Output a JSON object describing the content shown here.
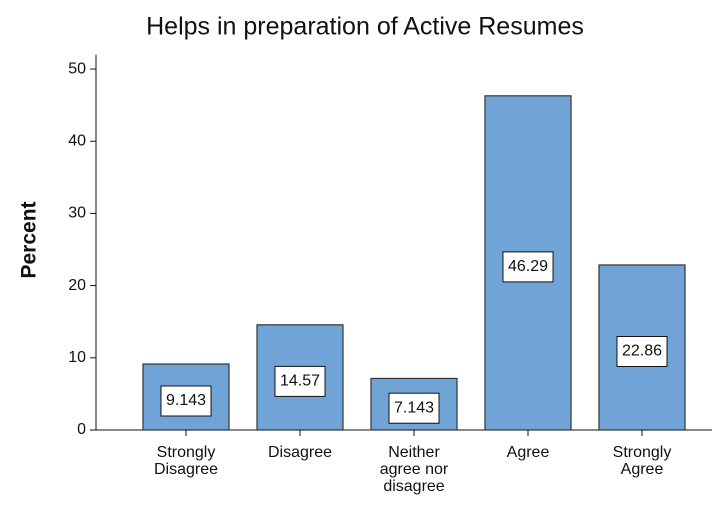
{
  "chart_data": {
    "type": "bar",
    "title": "Helps in preparation of Active Resumes",
    "y_label": "Percent",
    "categories": [
      "Strongly Disagree",
      "Disagree",
      "Neither agree nor disagree",
      "Agree",
      "Strongly Agree"
    ],
    "values": [
      9.143,
      14.57,
      7.143,
      46.29,
      22.86
    ],
    "color": "#71a4d6",
    "ylim": [
      0,
      52
    ],
    "yticks": [
      0,
      10,
      20,
      30,
      40,
      50
    ]
  }
}
